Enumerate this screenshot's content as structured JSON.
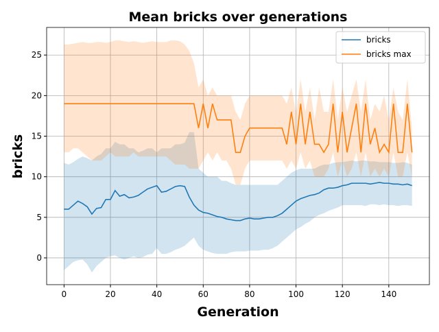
{
  "chart_data": {
    "type": "line",
    "title": "Mean bricks over generations",
    "xlabel": "Generation",
    "ylabel": "bricks",
    "x": [
      0,
      2,
      4,
      6,
      8,
      10,
      12,
      14,
      16,
      18,
      20,
      22,
      24,
      26,
      28,
      30,
      32,
      34,
      36,
      38,
      40,
      42,
      44,
      46,
      48,
      50,
      52,
      54,
      56,
      58,
      60,
      62,
      64,
      66,
      68,
      70,
      72,
      74,
      76,
      78,
      80,
      82,
      84,
      86,
      88,
      90,
      92,
      94,
      96,
      98,
      100,
      102,
      104,
      106,
      108,
      110,
      112,
      114,
      116,
      118,
      120,
      122,
      124,
      126,
      128,
      130,
      132,
      134,
      136,
      138,
      140,
      142,
      144,
      146,
      148,
      150
    ],
    "series": [
      {
        "name": "bricks",
        "color": "#1f77b4",
        "values": [
          6,
          6,
          6.5,
          7,
          6.7,
          6.3,
          5.4,
          6.1,
          6.2,
          7.2,
          7.2,
          8.3,
          7.6,
          7.8,
          7.4,
          7.5,
          7.7,
          8.1,
          8.5,
          8.7,
          8.9,
          8.1,
          8.2,
          8.5,
          8.8,
          8.9,
          8.8,
          7.5,
          6.5,
          5.9,
          5.6,
          5.5,
          5.3,
          5.1,
          5.0,
          4.8,
          4.7,
          4.6,
          4.6,
          4.8,
          4.9,
          4.8,
          4.8,
          4.9,
          5.0,
          5.0,
          5.2,
          5.5,
          6.0,
          6.5,
          7.0,
          7.3,
          7.5,
          7.7,
          7.8,
          8.0,
          8.4,
          8.6,
          8.6,
          8.7,
          8.9,
          9.0,
          9.2,
          9.2,
          9.2,
          9.2,
          9.1,
          9.2,
          9.3,
          9.2,
          9.2,
          9.1,
          9.1,
          9.0,
          9.1,
          8.9
        ],
        "lower": [
          -1.5,
          -1,
          -0.5,
          -0.3,
          -0.2,
          -0.8,
          -1.8,
          -1,
          -0.5,
          0,
          0.2,
          0.3,
          0,
          -0.2,
          0,
          0.2,
          0,
          0.1,
          0.4,
          0.5,
          1.2,
          0.5,
          0.5,
          0.7,
          1,
          1.2,
          1.5,
          2,
          2.5,
          1.5,
          1,
          0.8,
          0.6,
          0.5,
          0.5,
          0.5,
          0.7,
          0.8,
          0.8,
          0.8,
          0.9,
          0.9,
          0.9,
          1,
          1,
          1.2,
          1.5,
          2,
          2.5,
          3,
          3.5,
          3.8,
          4.2,
          4.5,
          5,
          5.3,
          5.5,
          5.8,
          6,
          6.2,
          6.5,
          6.5,
          6.5,
          6.5,
          6.5,
          6.4,
          6.6,
          6.6,
          6.5,
          6.6,
          6.5,
          6.5,
          6.4,
          6.5,
          6.5,
          6.4
        ],
        "upper": [
          11.7,
          11.5,
          11.8,
          12.2,
          12.5,
          12.3,
          12,
          12.5,
          12.8,
          13.5,
          13.5,
          14.3,
          14,
          14,
          13.5,
          13.5,
          13,
          13.2,
          13.5,
          13.5,
          13,
          13.5,
          13.5,
          13.5,
          14,
          14,
          14.2,
          15.5,
          15.5,
          11,
          10.5,
          10,
          10,
          10,
          9.5,
          9.5,
          9.2,
          9,
          9,
          9,
          9,
          9,
          9,
          9,
          9,
          9,
          9,
          9.5,
          10,
          10.5,
          10.8,
          11,
          11,
          11,
          11,
          11.3,
          11.5,
          11.5,
          11.7,
          11.8,
          11.8,
          11.9,
          12,
          11.9,
          12,
          12,
          11.9,
          11.9,
          11.8,
          11.8,
          11.8,
          11.7,
          11.7,
          11.8,
          11.7,
          11.5
        ]
      },
      {
        "name": "bricks max",
        "color": "#ff7f0e",
        "values": [
          19,
          19,
          19,
          19,
          19,
          19,
          19,
          19,
          19,
          19,
          19,
          19,
          19,
          19,
          19,
          19,
          19,
          19,
          19,
          19,
          19,
          19,
          19,
          19,
          19,
          19,
          19,
          19,
          19,
          16,
          19,
          16,
          19,
          17,
          17,
          17,
          17,
          13,
          13,
          15,
          16,
          16,
          16,
          16,
          16,
          16,
          16,
          16,
          14,
          18,
          14,
          19,
          14,
          18,
          14,
          14,
          13,
          14,
          19,
          13,
          18,
          13,
          16,
          19,
          13,
          19,
          14,
          16,
          13,
          14,
          13,
          19,
          13,
          13,
          19,
          13
        ],
        "lower": [
          13,
          13,
          13.5,
          13.5,
          13,
          12.5,
          12,
          12,
          12,
          12.5,
          13,
          12.5,
          12.5,
          12.5,
          12.5,
          13,
          12.5,
          12.5,
          12.5,
          12.5,
          12.5,
          12.5,
          12.5,
          12,
          11.5,
          11.5,
          11.5,
          11,
          11,
          11,
          12,
          13,
          12,
          13,
          12,
          12,
          11,
          9,
          9,
          11,
          12,
          12,
          12,
          12,
          12,
          12,
          12,
          12,
          11,
          12,
          11,
          13,
          11,
          12,
          10,
          10,
          10,
          11,
          13,
          10,
          12,
          10,
          11,
          13,
          10,
          13,
          10,
          11,
          10,
          11,
          10,
          13,
          10,
          10,
          13,
          10
        ],
        "upper": [
          26.3,
          26.3,
          26.4,
          26.5,
          26.6,
          26.5,
          26.5,
          26.6,
          26.6,
          26.5,
          26.6,
          26.8,
          26.8,
          26.7,
          26.6,
          26.7,
          26.6,
          26.5,
          26.6,
          26.7,
          26.6,
          26.6,
          26.6,
          26.8,
          26.8,
          26.7,
          26.3,
          25.5,
          24,
          21,
          22,
          20,
          21,
          20,
          20,
          20,
          20,
          18,
          17,
          19,
          20,
          20,
          20,
          20,
          20,
          20,
          20,
          20,
          19,
          21,
          18,
          22,
          18,
          21,
          17,
          21,
          18,
          18,
          22,
          17,
          21,
          18,
          20,
          22,
          18,
          22,
          17,
          19,
          18,
          20,
          17,
          21,
          18,
          17,
          22,
          16
        ]
      }
    ],
    "band_opacity": 0.2,
    "xlim": [
      -7.5,
      157.5
    ],
    "xticks": [
      0,
      20,
      40,
      60,
      80,
      100,
      120,
      140
    ],
    "ylim": [
      -3.3,
      28.4
    ],
    "yticks": [
      0,
      5,
      10,
      15,
      20,
      25
    ],
    "grid": true,
    "legend": "upper right"
  }
}
